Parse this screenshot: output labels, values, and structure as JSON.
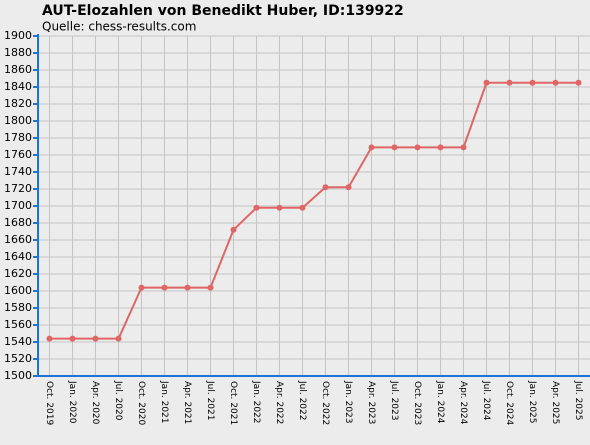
{
  "chart_data": {
    "type": "line",
    "title": "AUT-Elozahlen von Benedikt Huber, ID:139922",
    "subtitle": "Quelle: chess-results.com",
    "categories": [
      "Oct. 2019",
      "Jan. 2020",
      "Apr. 2020",
      "Jul. 2020",
      "Oct. 2020",
      "Jan. 2021",
      "Apr. 2021",
      "Jul. 2021",
      "Oct. 2021",
      "Jan. 2022",
      "Apr. 2022",
      "Jul. 2022",
      "Oct. 2022",
      "Jan. 2023",
      "Apr. 2023",
      "Jul. 2023",
      "Oct. 2023",
      "Jan. 2024",
      "Apr. 2024",
      "Jul. 2024",
      "Oct. 2024",
      "Jan. 2025",
      "Apr. 2025",
      "Jul. 2025"
    ],
    "values": [
      1544,
      1544,
      1544,
      1544,
      1604,
      1604,
      1604,
      1604,
      1672,
      1698,
      1698,
      1698,
      1722,
      1722,
      1769,
      1769,
      1769,
      1769,
      1769,
      1845,
      1845,
      1845,
      1845,
      1845
    ],
    "color": "#e06666",
    "ylim": [
      1500,
      1900
    ],
    "yticks": [
      1500,
      1520,
      1540,
      1560,
      1580,
      1600,
      1620,
      1640,
      1660,
      1680,
      1700,
      1720,
      1740,
      1760,
      1780,
      1800,
      1820,
      1840,
      1860,
      1880,
      1900
    ],
    "grid": true
  }
}
